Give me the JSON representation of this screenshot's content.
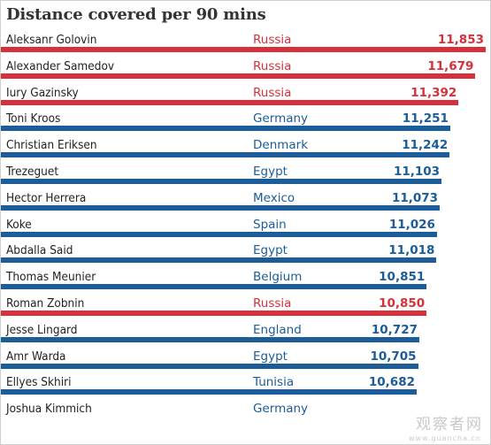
{
  "chart_data": {
    "type": "bar",
    "title": "Distance covered per 90 mins",
    "colors": {
      "Russia": "#d7303b",
      "other": "#1b5c99"
    },
    "rows": [
      {
        "player": "Aleksanr Golovin",
        "country": "Russia",
        "value": 11853,
        "label": "11,853"
      },
      {
        "player": "Alexander Samedov",
        "country": "Russia",
        "value": 11679,
        "label": "11,679"
      },
      {
        "player": "Iury Gazinsky",
        "country": "Russia",
        "value": 11392,
        "label": "11,392"
      },
      {
        "player": "Toni Kroos",
        "country": "Germany",
        "value": 11251,
        "label": "11,251"
      },
      {
        "player": "Christian Eriksen",
        "country": "Denmark",
        "value": 11242,
        "label": "11,242"
      },
      {
        "player": "Trezeguet",
        "country": "Egypt",
        "value": 11103,
        "label": "11,103"
      },
      {
        "player": "Hector Herrera",
        "country": "Mexico",
        "value": 11073,
        "label": "11,073"
      },
      {
        "player": "Koke",
        "country": "Spain",
        "value": 11026,
        "label": "11,026"
      },
      {
        "player": "Abdalla Said",
        "country": "Egypt",
        "value": 11018,
        "label": "11,018"
      },
      {
        "player": "Thomas Meunier",
        "country": "Belgium",
        "value": 10851,
        "label": "10,851"
      },
      {
        "player": "Roman Zobnin",
        "country": "Russia",
        "value": 10850,
        "label": "10,850"
      },
      {
        "player": "Jesse Lingard",
        "country": "England",
        "value": 10727,
        "label": "10,727"
      },
      {
        "player": "Amr Warda",
        "country": "Egypt",
        "value": 10705,
        "label": "10,705"
      },
      {
        "player": "Ellyes Skhiri",
        "country": "Tunisia",
        "value": 10682,
        "label": "10,682"
      },
      {
        "player": "Joshua Kimmich",
        "country": "Germany",
        "value": null,
        "label": ""
      }
    ]
  },
  "watermark": {
    "text": "观察者网",
    "sub": "www.guancha.cn"
  }
}
